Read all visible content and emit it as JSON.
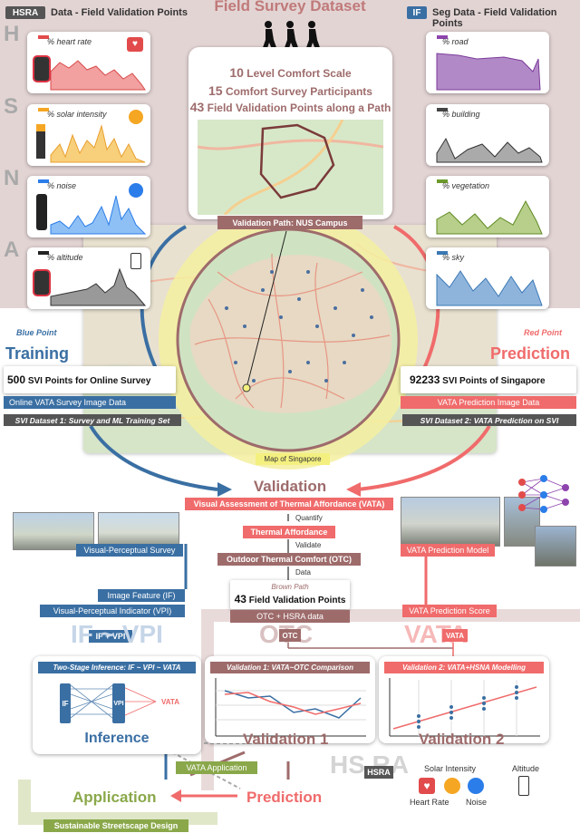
{
  "title": "Field Survey Dataset",
  "hsra_tag": "HSRA",
  "hsra_header": "Data - Field Validation Points",
  "if_tag": "IF",
  "if_header": "Seg Data - Field Validation Points",
  "left_letters": [
    "H",
    "S",
    "N",
    "A"
  ],
  "left_panels": [
    {
      "label": "% heart rate",
      "color": "#e24b4b"
    },
    {
      "label": "% solar intensity",
      "color": "#f5a623"
    },
    {
      "label": "% noise",
      "color": "#2b7de9"
    },
    {
      "label": "% altitude",
      "color": "#222222"
    }
  ],
  "right_panels": [
    {
      "label": "% road",
      "color": "#8e44ad"
    },
    {
      "label": "% building",
      "color": "#444444"
    },
    {
      "label": "% vegetation",
      "color": "#6c9a2a"
    },
    {
      "label": "% sky",
      "color": "#3a78b5"
    }
  ],
  "survey": {
    "l1n": "10",
    "l1t": "Level Comfort Scale",
    "l2n": "15",
    "l2t": "Comfort Survey Participants",
    "l3n": "43",
    "l3t": "Field Validation Points along a Path"
  },
  "validation_path": "Validation Path: NUS Campus",
  "map_label": "Map of Singapore",
  "blue_point": "Blue Point",
  "training": "Training",
  "red_point": "Red Point",
  "prediction_top": "Prediction",
  "svi_online": {
    "n": "500",
    "t": "SVI Points for Online Survey"
  },
  "online_vata": "Online VATA Survey Image Data",
  "svi_ds1": "SVI Dataset 1: Survey and ML Training Set",
  "svi_sg": {
    "n": "92233",
    "t": "SVI Points of Singapore"
  },
  "vata_pred_img": "VATA Prediction Image Data",
  "svi_ds2": "SVI Dataset 2: VATA Prediction on SVI",
  "validation": "Validation",
  "vata_full": "Visual Assessment of Thermal Affordance (VATA)",
  "quantify": "Quantify",
  "thermal_aff": "Thermal Affordance",
  "validate": "Validate",
  "otc_full": "Outdoor Thermal Comfort (OTC)",
  "data_lbl": "Data",
  "brown_path": "Brown Path",
  "field_vp": {
    "n": "43",
    "t": "Field Validation Points"
  },
  "otc_hsra": "OTC + HSRA data",
  "vp_survey": "Visual-Perceptual Survey",
  "vata_model": "VATA Prediction Model",
  "image_feature": "Image Feature (IF)",
  "vpi": "Visual-Perceptual Indicator (VPI)",
  "vata_score": "VATA Prediction Score",
  "if_vpi_chip": "IF + VPI",
  "if_vpi_big": "IF ~ VPI",
  "otc_big": "OTC",
  "vata_big": "VATA",
  "otc_chip": "OTC",
  "vata_chip": "VATA",
  "two_stage": "Two-Stage Inference: IF ~ VPI ~ VATA",
  "node_if": "IF",
  "node_vpi": "VPI",
  "node_vata": "VATA",
  "inference": "Inference",
  "val1_title": "Validation 1: VATA~OTC Comparison",
  "val2_title": "Validation 2: VATA+HSNA Modelling",
  "validation1": "Validation 1",
  "validation2": "Validation 2",
  "vata_app": "VATA Application",
  "application": "Application",
  "prediction_bottom": "Prediction",
  "hsra_big": "HS RA",
  "hsra_chip": "HSRA",
  "solar_intensity": "Solar Intensity",
  "altitude": "Altitude",
  "heart_rate": "Heart Rate",
  "noise": "Noise",
  "sustainable": "Sustainable Streetscape Design",
  "colors": {
    "maroon": "#9e6b6b",
    "salmon": "#f06b6b",
    "blue": "#3a6fa3",
    "olive": "#8aa84a",
    "mauve": "#e3d4d4"
  }
}
